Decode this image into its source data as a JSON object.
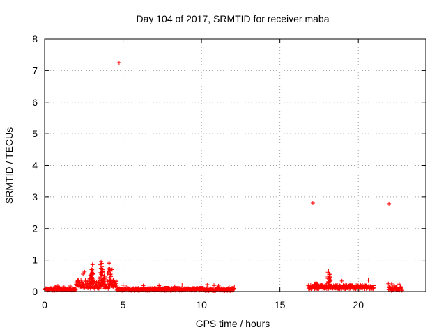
{
  "chart_data": {
    "type": "scatter",
    "title": "Day 104 of 2017, SRMTID for receiver maba",
    "xlabel": "GPS time / hours",
    "ylabel": "SRMTID / TECUs",
    "xlim": [
      0,
      24.3
    ],
    "ylim": [
      0,
      8
    ],
    "xticks": [
      0,
      5,
      10,
      15,
      20
    ],
    "yticks": [
      0,
      1,
      2,
      3,
      4,
      5,
      6,
      7,
      8
    ],
    "grid": true,
    "legend": "none",
    "marker": "+",
    "series_color": "#ff0000",
    "series": [
      {
        "name": "SRMTID",
        "segments": [
          {
            "x_start": 0.0,
            "x_end": 2.0,
            "base": 0.06,
            "jitter": 0.07
          },
          {
            "x_start": 2.0,
            "x_end": 4.6,
            "base": 0.2,
            "jitter": 0.28
          },
          {
            "x_start": 4.6,
            "x_end": 12.1,
            "base": 0.06,
            "jitter": 0.08
          },
          {
            "x_start": 16.8,
            "x_end": 21.0,
            "base": 0.13,
            "jitter": 0.12
          },
          {
            "x_start": 21.9,
            "x_end": 22.8,
            "base": 0.08,
            "jitter": 0.12
          }
        ],
        "peaks": [
          {
            "x": 2.9,
            "y": 0.5
          },
          {
            "x": 3.0,
            "y": 0.65
          },
          {
            "x": 3.05,
            "y": 0.85
          },
          {
            "x": 3.1,
            "y": 0.55
          },
          {
            "x": 3.5,
            "y": 0.4
          },
          {
            "x": 3.6,
            "y": 0.95
          },
          {
            "x": 3.65,
            "y": 0.8
          },
          {
            "x": 3.7,
            "y": 0.6
          },
          {
            "x": 3.8,
            "y": 0.5
          },
          {
            "x": 4.1,
            "y": 0.9
          },
          {
            "x": 4.15,
            "y": 0.7
          },
          {
            "x": 4.2,
            "y": 0.55
          },
          {
            "x": 18.1,
            "y": 0.65
          },
          {
            "x": 18.15,
            "y": 0.55
          },
          {
            "x": 18.2,
            "y": 0.45
          },
          {
            "x": 17.3,
            "y": 0.3
          }
        ],
        "outliers": [
          {
            "x": 4.75,
            "y": 7.25
          },
          {
            "x": 17.1,
            "y": 2.8
          },
          {
            "x": 21.95,
            "y": 2.78
          }
        ]
      }
    ]
  }
}
